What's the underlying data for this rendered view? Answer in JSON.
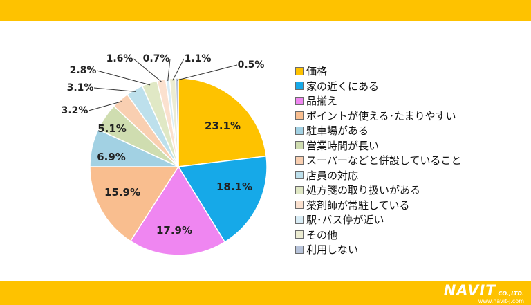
{
  "chart_data": {
    "type": "pie",
    "title": "",
    "start_angle_deg": 0,
    "direction": "clockwise",
    "slices": [
      {
        "label": "価格",
        "value": 23.1,
        "value_label": "23.1%",
        "color": "#fec200"
      },
      {
        "label": "家の近くにある",
        "value": 18.1,
        "value_label": "18.1%",
        "color": "#16a9e8"
      },
      {
        "label": "品揃え",
        "value": 17.9,
        "value_label": "17.9%",
        "color": "#ef86f1"
      },
      {
        "label": "ポイントが使える･たまりやすい",
        "value": 15.9,
        "value_label": "15.9%",
        "color": "#f9be8f"
      },
      {
        "label": "駐車場がある",
        "value": 6.9,
        "value_label": "6.9%",
        "color": "#a2d1e3"
      },
      {
        "label": "営業時間が長い",
        "value": 5.1,
        "value_label": "5.1%",
        "color": "#cfddb0"
      },
      {
        "label": "スーパーなどと併設していること",
        "value": 3.2,
        "value_label": "3.2%",
        "color": "#f9cfb1"
      },
      {
        "label": "店員の対応",
        "value": 3.1,
        "value_label": "3.1%",
        "color": "#bde0ec"
      },
      {
        "label": "処方箋の取り扱いがある",
        "value": 2.8,
        "value_label": "2.8%",
        "color": "#e0e8c5"
      },
      {
        "label": "薬剤師が常駐している",
        "value": 1.6,
        "value_label": "1.6%",
        "color": "#fbe1cf"
      },
      {
        "label": "駅･バス停が近い",
        "value": 0.7,
        "value_label": "0.7%",
        "color": "#d9edf6"
      },
      {
        "label": "その他",
        "value": 1.1,
        "value_label": "1.1%",
        "color": "#ececd2"
      },
      {
        "label": "利用しない",
        "value": 0.5,
        "value_label": "0.5%",
        "color": "#b7c3da"
      }
    ],
    "legend_position": "right"
  },
  "logo": {
    "text": "NAVIT",
    "sub": "CO.,LTD.",
    "url": "www.navit-j.com"
  }
}
